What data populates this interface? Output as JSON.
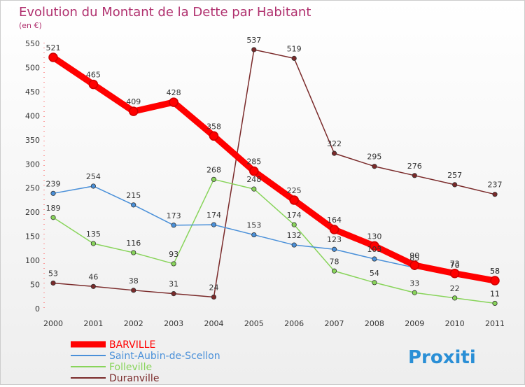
{
  "chart_data": {
    "type": "line",
    "title": "Evolution du Montant de la Dette par Habitant",
    "subtitle": "(en €)",
    "xlabel": "",
    "ylabel": "",
    "x": [
      "2000",
      "2001",
      "2002",
      "2003",
      "2004",
      "2005",
      "2006",
      "2007",
      "2008",
      "2009",
      "2010",
      "2011"
    ],
    "ylim": [
      0,
      550
    ],
    "yticks": [
      0,
      50,
      100,
      150,
      200,
      250,
      300,
      350,
      400,
      450,
      500,
      550
    ],
    "grid": false,
    "legend_position": "bottom-left",
    "series": [
      {
        "name": "BARVILLE",
        "color": "#ff0000",
        "values": [
          521,
          465,
          409,
          428,
          358,
          285,
          225,
          164,
          130,
          90,
          73,
          58
        ]
      },
      {
        "name": "Saint-Aubin-de-Scellon",
        "color": "#4a90d9",
        "values": [
          239,
          254,
          215,
          173,
          174,
          153,
          132,
          123,
          103,
          85,
          70,
          58
        ]
      },
      {
        "name": "Folleville",
        "color": "#88d45a",
        "values": [
          189,
          135,
          116,
          93,
          268,
          248,
          174,
          78,
          54,
          33,
          22,
          11
        ]
      },
      {
        "name": "Duranville",
        "color": "#7a2a2a",
        "values": [
          53,
          46,
          38,
          31,
          24,
          537,
          519,
          322,
          295,
          276,
          257,
          237
        ]
      }
    ]
  },
  "logo": {
    "text": "Proxiti"
  }
}
